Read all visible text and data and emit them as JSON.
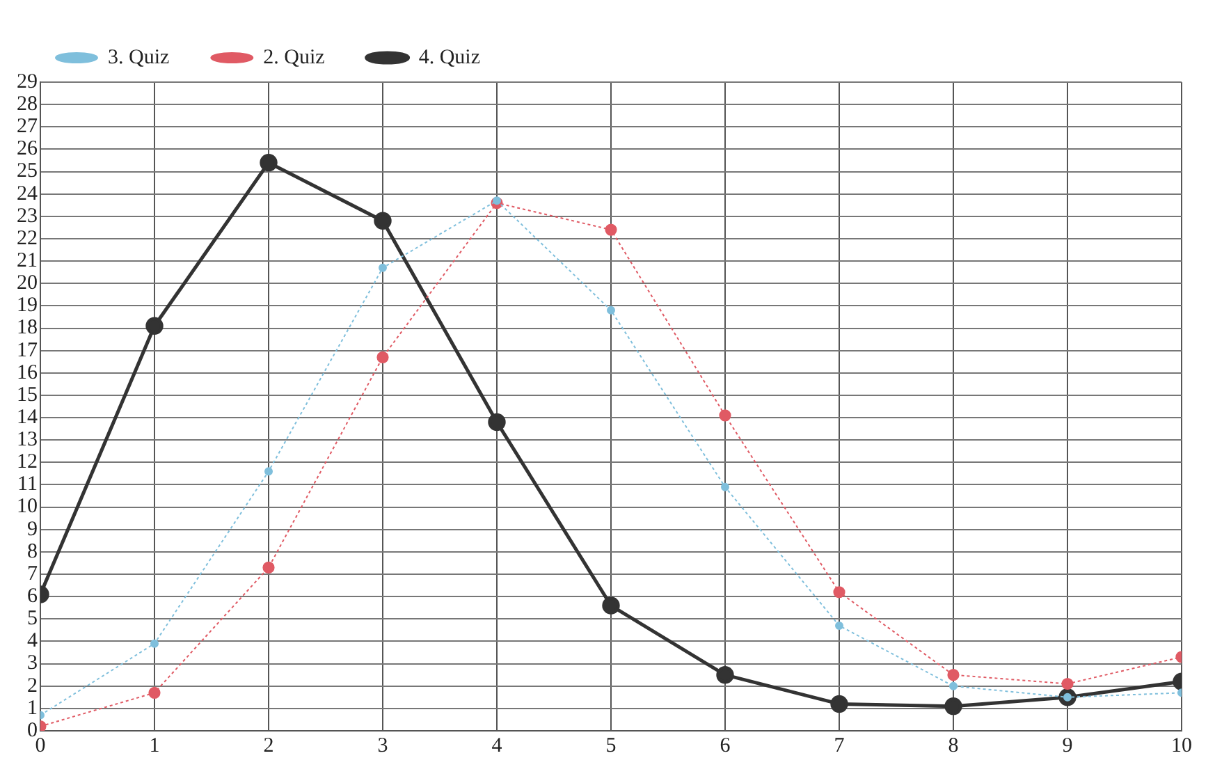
{
  "chart_data": {
    "type": "line",
    "x": [
      0,
      1,
      2,
      3,
      4,
      5,
      6,
      7,
      8,
      9,
      10
    ],
    "series": [
      {
        "name": "3. Quiz",
        "color": "#7fbfdc",
        "line_style": "dotted",
        "values": [
          0.7,
          3.9,
          11.6,
          20.7,
          23.7,
          18.8,
          10.9,
          4.7,
          2.0,
          1.5,
          1.7
        ]
      },
      {
        "name": "2. Quiz",
        "color": "#e05a64",
        "line_style": "dotted",
        "values": [
          0.2,
          1.7,
          7.3,
          16.7,
          23.6,
          22.4,
          14.1,
          6.2,
          2.5,
          2.1,
          3.3
        ]
      },
      {
        "name": "4. Quiz",
        "color": "#333333",
        "line_style": "solid",
        "values": [
          6.1,
          18.1,
          25.4,
          22.8,
          13.8,
          5.6,
          2.5,
          1.2,
          1.1,
          1.5,
          2.2
        ]
      }
    ],
    "xlim": [
      0,
      10
    ],
    "xticks": [
      0,
      1,
      2,
      3,
      4,
      5,
      6,
      7,
      8,
      9,
      10
    ],
    "ylim": [
      0,
      29
    ],
    "yticks": [
      0,
      1,
      2,
      3,
      4,
      5,
      6,
      7,
      8,
      9,
      10,
      11,
      12,
      13,
      14,
      15,
      16,
      17,
      18,
      19,
      20,
      21,
      22,
      23,
      24,
      25,
      26,
      27,
      28,
      29
    ],
    "grid": true,
    "legend": "top left",
    "marker": "circle"
  }
}
